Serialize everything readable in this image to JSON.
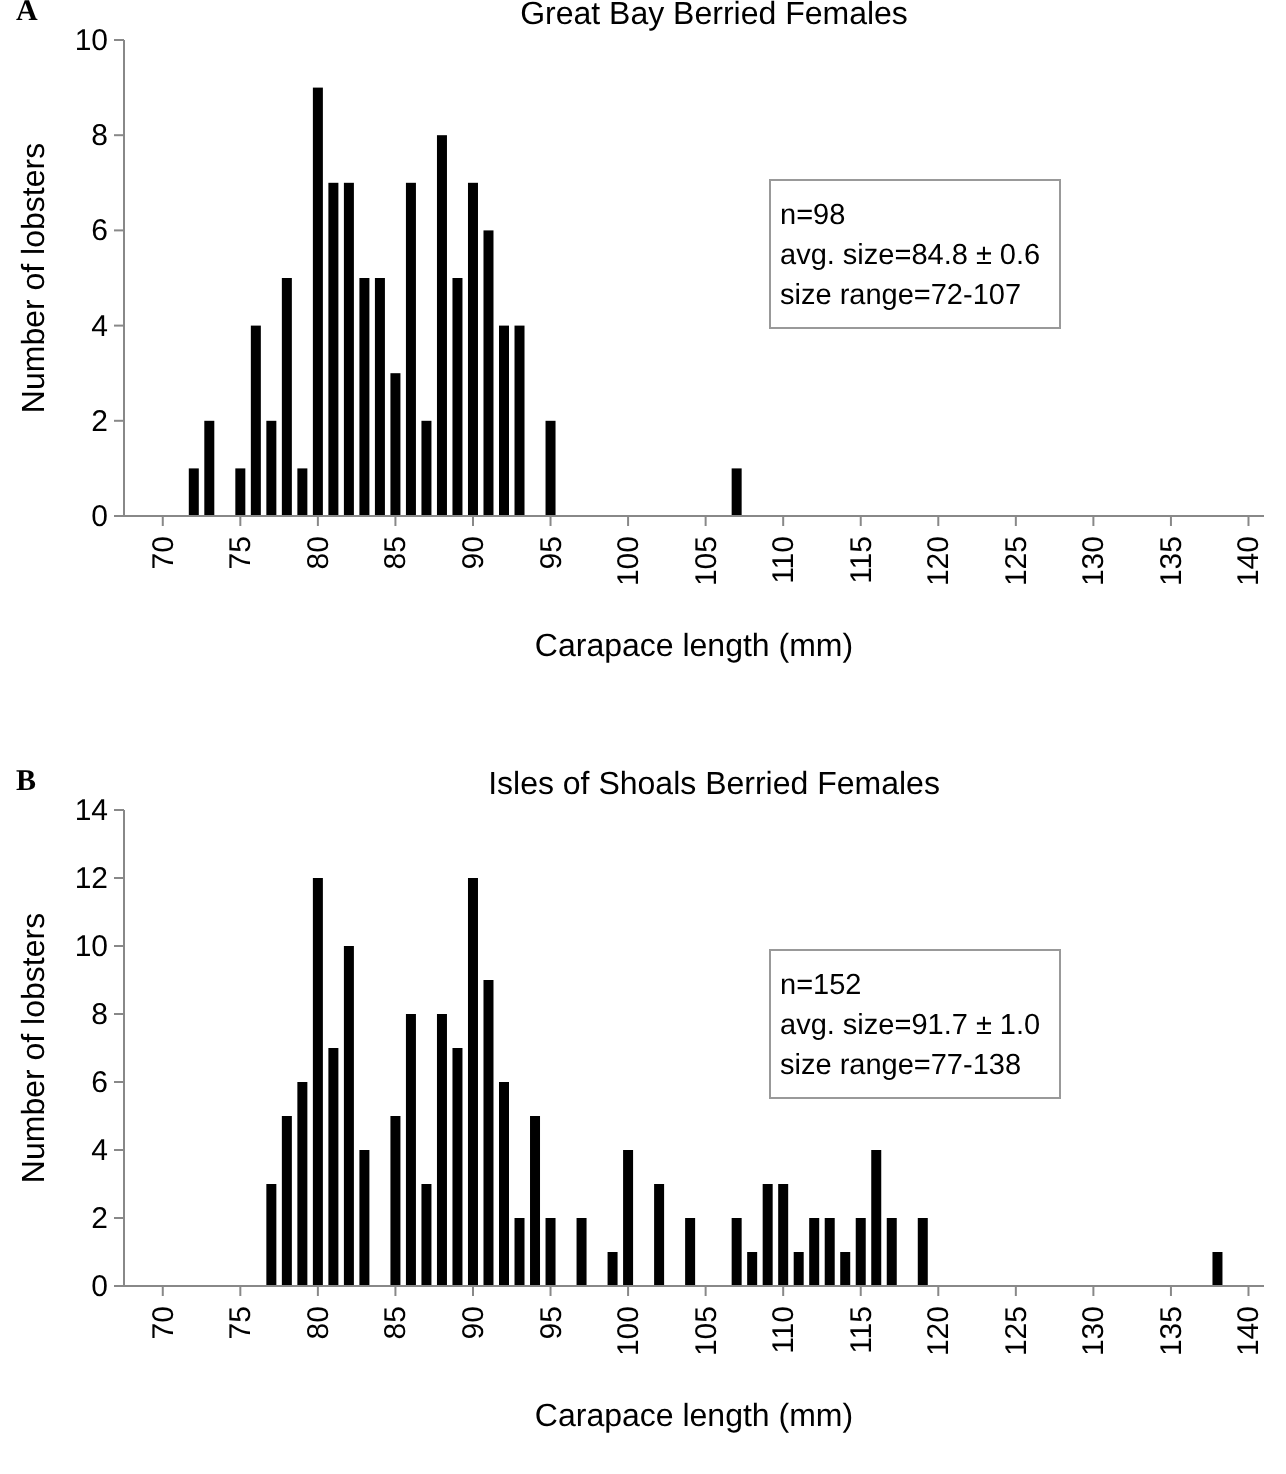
{
  "chart_data": [
    {
      "type": "bar",
      "title": "Great Bay Berried Females",
      "xlabel": "Carapace length (mm)",
      "ylabel": "Number of lobsters",
      "annotations": [
        "A",
        "n=98",
        "avg. size=84.8 ± 0.6",
        "size range=72-107"
      ],
      "x": [
        72,
        73,
        75,
        76,
        77,
        78,
        79,
        80,
        81,
        82,
        83,
        84,
        85,
        86,
        87,
        88,
        89,
        90,
        91,
        92,
        93,
        95,
        107
      ],
      "values": [
        1,
        2,
        1,
        4,
        2,
        5,
        1,
        9,
        7,
        7,
        5,
        5,
        3,
        7,
        2,
        8,
        5,
        7,
        6,
        4,
        4,
        2,
        1
      ],
      "color": "#000000",
      "xlim": [
        67.5,
        141
      ],
      "xticks": [
        70,
        75,
        80,
        85,
        90,
        95,
        100,
        105,
        110,
        115,
        120,
        125,
        130,
        135,
        140
      ],
      "ylim": [
        0,
        10
      ],
      "yticks": [
        0,
        2,
        4,
        6,
        8,
        10
      ],
      "grid": false
    },
    {
      "type": "bar",
      "title": "Isles of Shoals Berried Females",
      "xlabel": "Carapace length (mm)",
      "ylabel": "Number of lobsters",
      "annotations": [
        "B",
        "n=152",
        "avg. size=91.7 ± 1.0",
        "size range=77-138"
      ],
      "x": [
        77,
        78,
        79,
        80,
        81,
        82,
        83,
        85,
        86,
        87,
        88,
        89,
        90,
        91,
        92,
        93,
        94,
        95,
        97,
        99,
        100,
        102,
        104,
        107,
        108,
        109,
        110,
        111,
        112,
        113,
        114,
        115,
        116,
        117,
        119,
        138
      ],
      "values": [
        3,
        5,
        6,
        12,
        7,
        10,
        4,
        5,
        8,
        3,
        8,
        7,
        12,
        9,
        6,
        2,
        5,
        2,
        2,
        1,
        4,
        3,
        2,
        2,
        1,
        3,
        3,
        1,
        2,
        2,
        1,
        2,
        4,
        2,
        2,
        1
      ],
      "color": "#000000",
      "xlim": [
        67.5,
        141
      ],
      "xticks": [
        70,
        75,
        80,
        85,
        90,
        95,
        100,
        105,
        110,
        115,
        120,
        125,
        130,
        135,
        140
      ],
      "ylim": [
        0,
        14
      ],
      "yticks": [
        0,
        2,
        4,
        6,
        8,
        10,
        12,
        14
      ],
      "grid": false
    }
  ]
}
